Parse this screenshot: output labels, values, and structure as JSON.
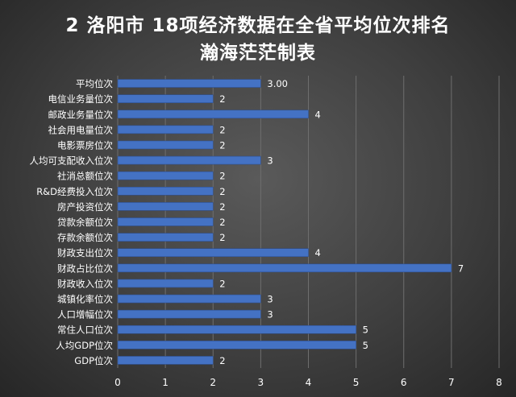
{
  "chart_data": {
    "type": "bar",
    "orientation": "horizontal",
    "title": "2 洛阳市 18项经济数据在全省平均位次排名",
    "subtitle": "瀚海茫茫制表",
    "categories": [
      "平均位次",
      "电信业务量位次",
      "邮政业务量位次",
      "社会用电量位次",
      "电影票房位次",
      "人均可支配收入位次",
      "社消总额位次",
      "R&D经费投入位次",
      "房产投资位次",
      "贷款余额位次",
      "存款余额位次",
      "财政支出位次",
      "财政占比位次",
      "财政收入位次",
      "城镇化率位次",
      "人口增幅位次",
      "常住人口位次",
      "人均GDP位次",
      "GDP位次"
    ],
    "values": [
      3,
      2,
      4,
      2,
      2,
      3,
      2,
      2,
      2,
      2,
      2,
      4,
      7,
      2,
      3,
      3,
      5,
      5,
      2
    ],
    "data_labels": [
      "3.00",
      "2",
      "4",
      "2",
      "2",
      "3",
      "2",
      "2",
      "2",
      "2",
      "2",
      "4",
      "7",
      "2",
      "3",
      "3",
      "5",
      "5",
      "2"
    ],
    "xlim": [
      0,
      8
    ],
    "xticks": [
      "0",
      "1",
      "2",
      "3",
      "4",
      "5",
      "6",
      "7",
      "8"
    ],
    "grid": true,
    "bar_color": "#4472c4"
  }
}
